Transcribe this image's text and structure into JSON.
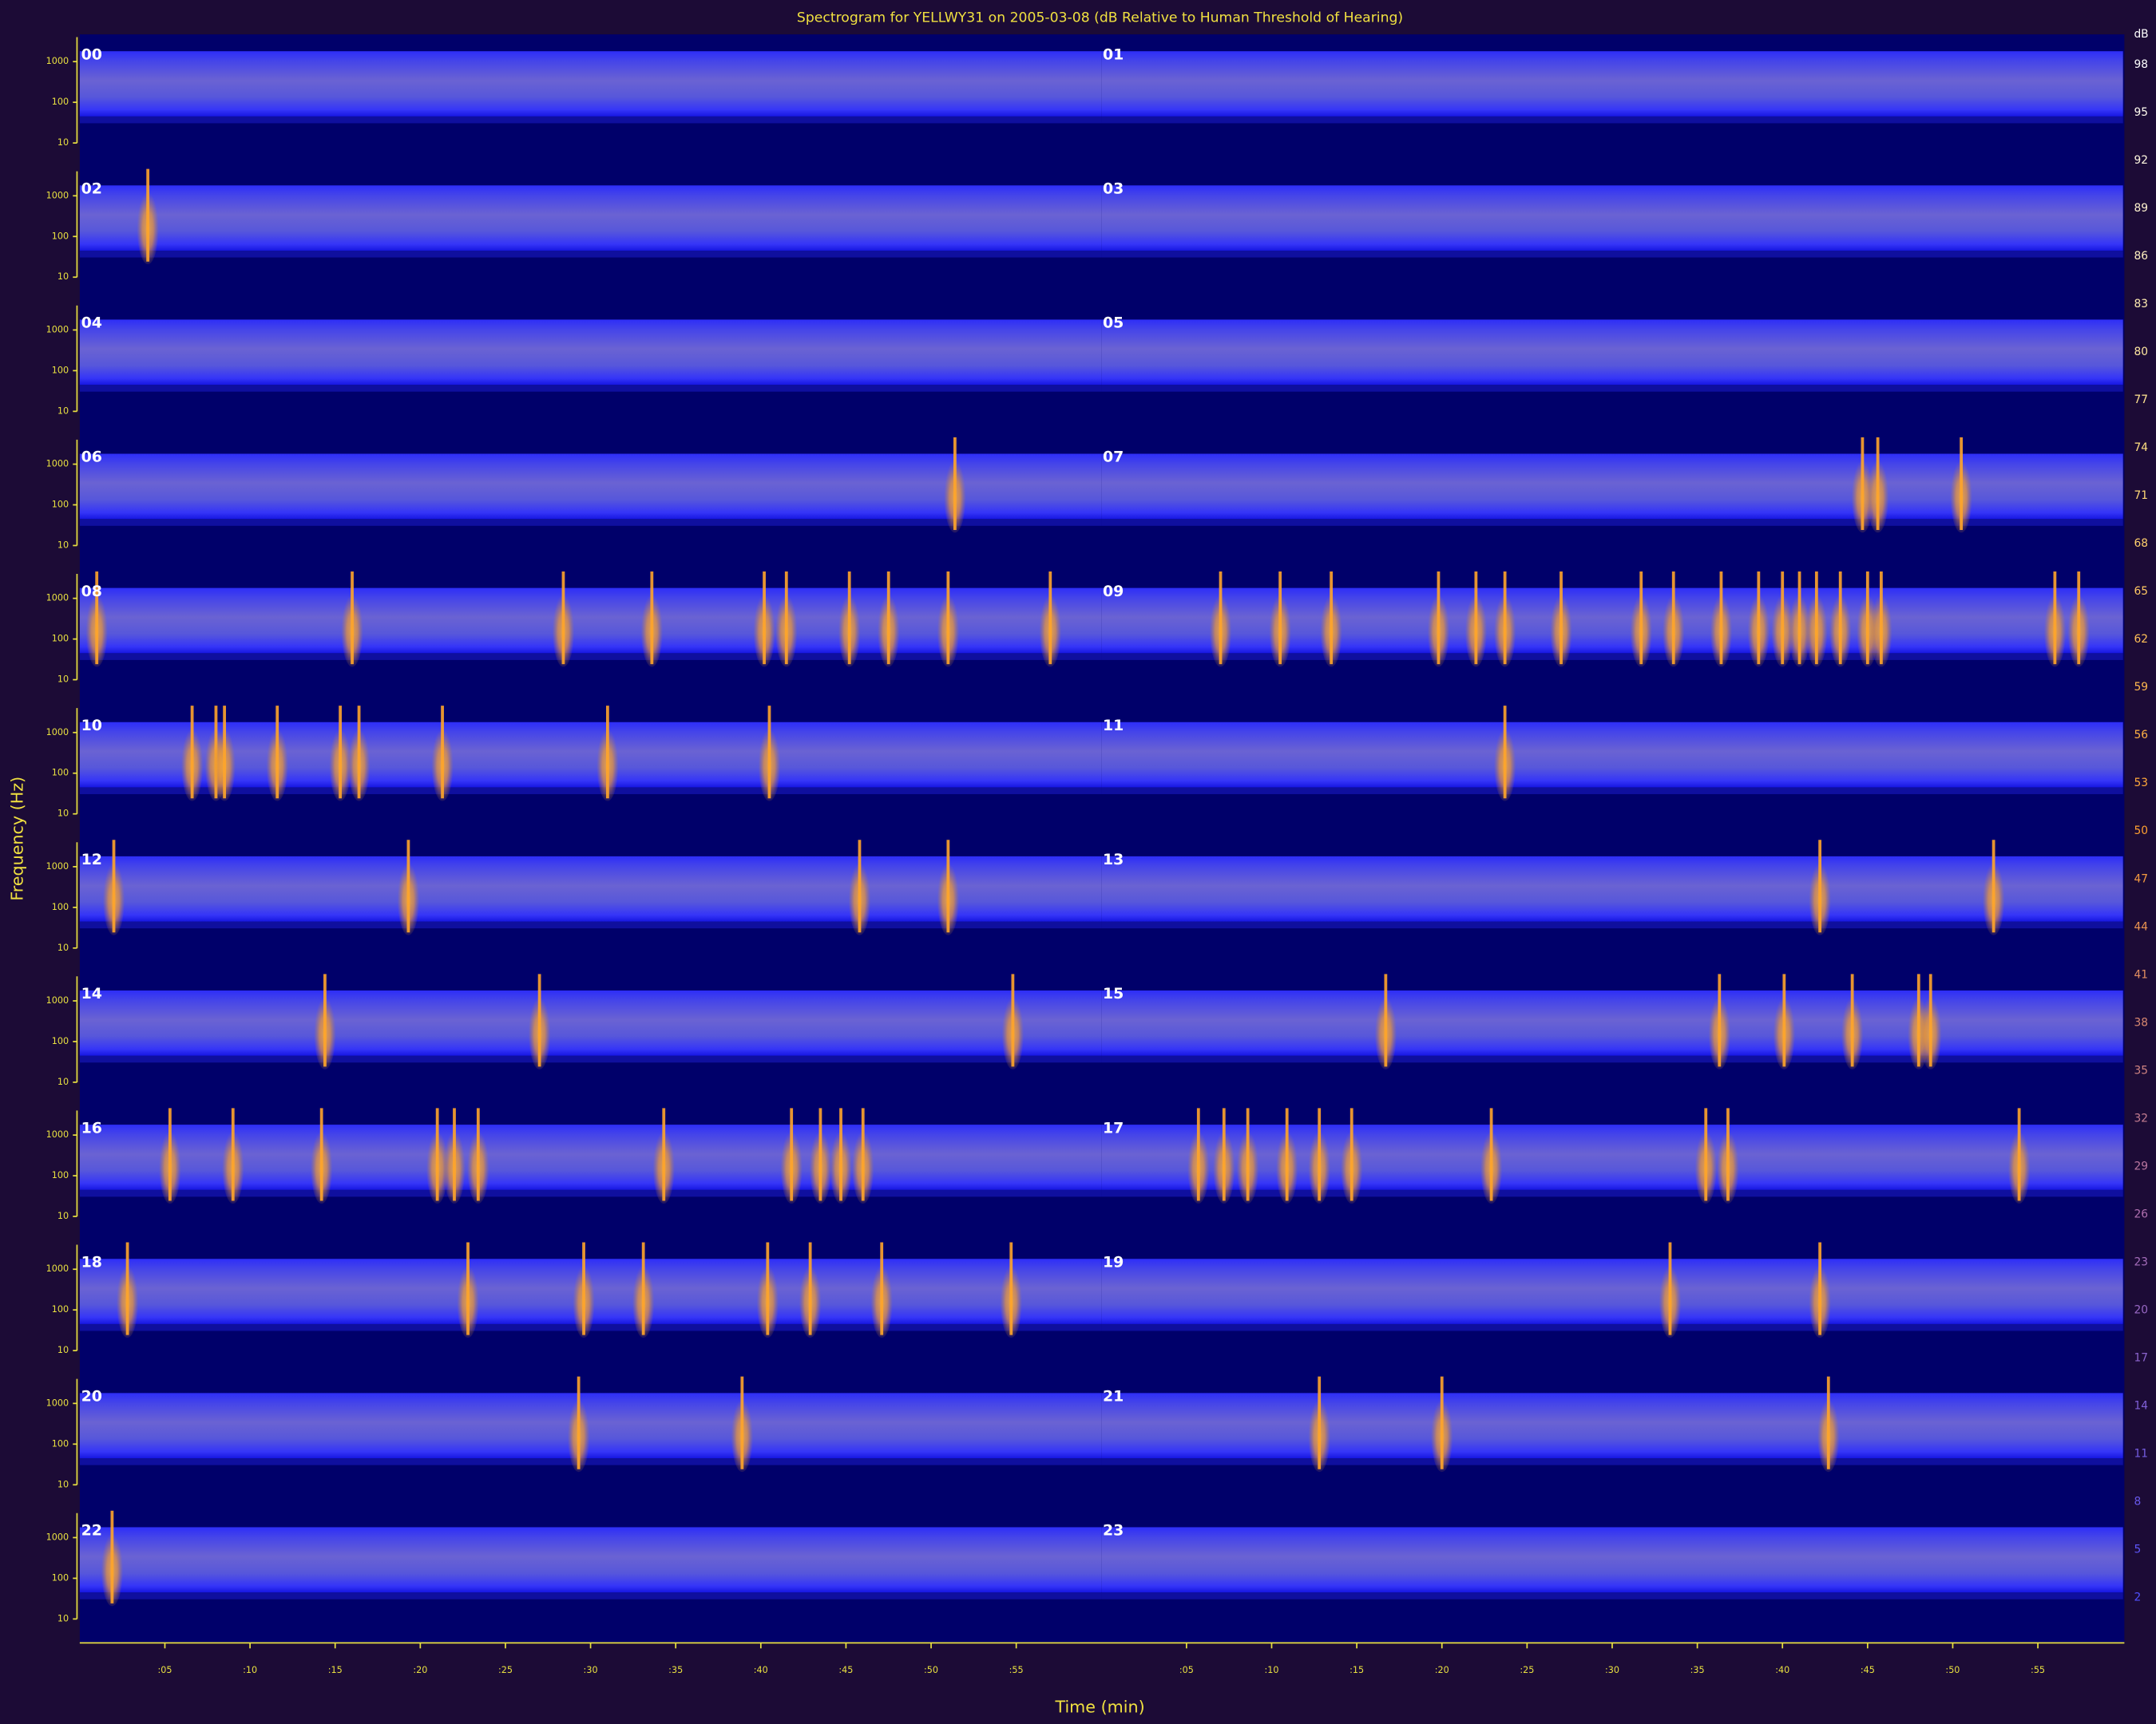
{
  "chart_data": {
    "type": "spectrogram",
    "title": "Spectrogram for YELLWY31 on 2005-03-08 (dB Relative to Human Threshold of Hearing)",
    "x_label": "Time (min)",
    "y_label": "Frequency (Hz)",
    "colorbar_label": "dB",
    "categories": [
      "00",
      "01",
      "02",
      "03",
      "04",
      "05",
      "06",
      "07",
      "08",
      "09",
      "10",
      "11",
      "12",
      "13",
      "14",
      "15",
      "16",
      "17",
      "18",
      "19",
      "20",
      "21",
      "22",
      "23"
    ],
    "xlim": [
      0,
      60
    ],
    "xticks": [
      {
        "value": 5,
        "label": ":05"
      },
      {
        "value": 10,
        "label": ":10"
      },
      {
        "value": 15,
        "label": ":15"
      },
      {
        "value": 20,
        "label": ":20"
      },
      {
        "value": 25,
        "label": ":25"
      },
      {
        "value": 30,
        "label": ":30"
      },
      {
        "value": 35,
        "label": ":35"
      },
      {
        "value": 40,
        "label": ":40"
      },
      {
        "value": 45,
        "label": ":45"
      },
      {
        "value": 50,
        "label": ":50"
      },
      {
        "value": 55,
        "label": ":55"
      }
    ],
    "ylim": [
      10,
      4000
    ],
    "yticks": [
      10,
      100,
      1000
    ],
    "log_y": true,
    "band_hz": [
      45,
      1800
    ],
    "clim": [
      2,
      98
    ],
    "cticks": [
      98,
      95,
      92,
      89,
      86,
      83,
      80,
      77,
      74,
      71,
      68,
      65,
      62,
      59,
      56,
      53,
      50,
      47,
      44,
      41,
      38,
      35,
      32,
      29,
      26,
      23,
      20,
      17,
      14,
      11,
      8,
      5,
      2
    ],
    "colorbar_colors": [
      "#ffffff",
      "#ffe080",
      "#ffa030",
      "#b070b0",
      "#5050ff"
    ],
    "band_color": "#2a2aff",
    "event_color": "#ffa52a",
    "events": [
      [],
      [],
      [
        4
      ],
      [],
      [],
      [],
      [
        51.4
      ],
      [
        44.7,
        45.6,
        50.5
      ],
      [
        1,
        16,
        28.4,
        33.6,
        40.2,
        41.5,
        45.2,
        47.5,
        51,
        57
      ],
      [
        7,
        10.5,
        13.5,
        19.8,
        22,
        23.7,
        27,
        31.7,
        33.6,
        36.4,
        38.6,
        40,
        41,
        42,
        43.4,
        45,
        45.8,
        56,
        57.4
      ],
      [
        6.6,
        8,
        8.5,
        11.6,
        15.3,
        16.4,
        21.3,
        31,
        40.5
      ],
      [
        23.7
      ],
      [
        2,
        19.3,
        45.8,
        51
      ],
      [
        42.2,
        52.4
      ],
      [
        14.4,
        27,
        54.8
      ],
      [
        16.7,
        36.3,
        40.1,
        44.1,
        48,
        48.7
      ],
      [
        5.3,
        9,
        14.2,
        21,
        22,
        23.4,
        34.3,
        41.8,
        43.5,
        44.7,
        46
      ],
      [
        5.7,
        7.2,
        8.6,
        10.9,
        12.8,
        14.7,
        22.9,
        35.5,
        36.8,
        53.9
      ],
      [
        2.8,
        22.8,
        29.6,
        33.1,
        40.4,
        42.9,
        47.1,
        54.7
      ],
      [
        33.4,
        42.2
      ],
      [
        29.3,
        38.9
      ],
      [
        12.8,
        20,
        42.7
      ],
      [
        1.9
      ],
      []
    ]
  }
}
